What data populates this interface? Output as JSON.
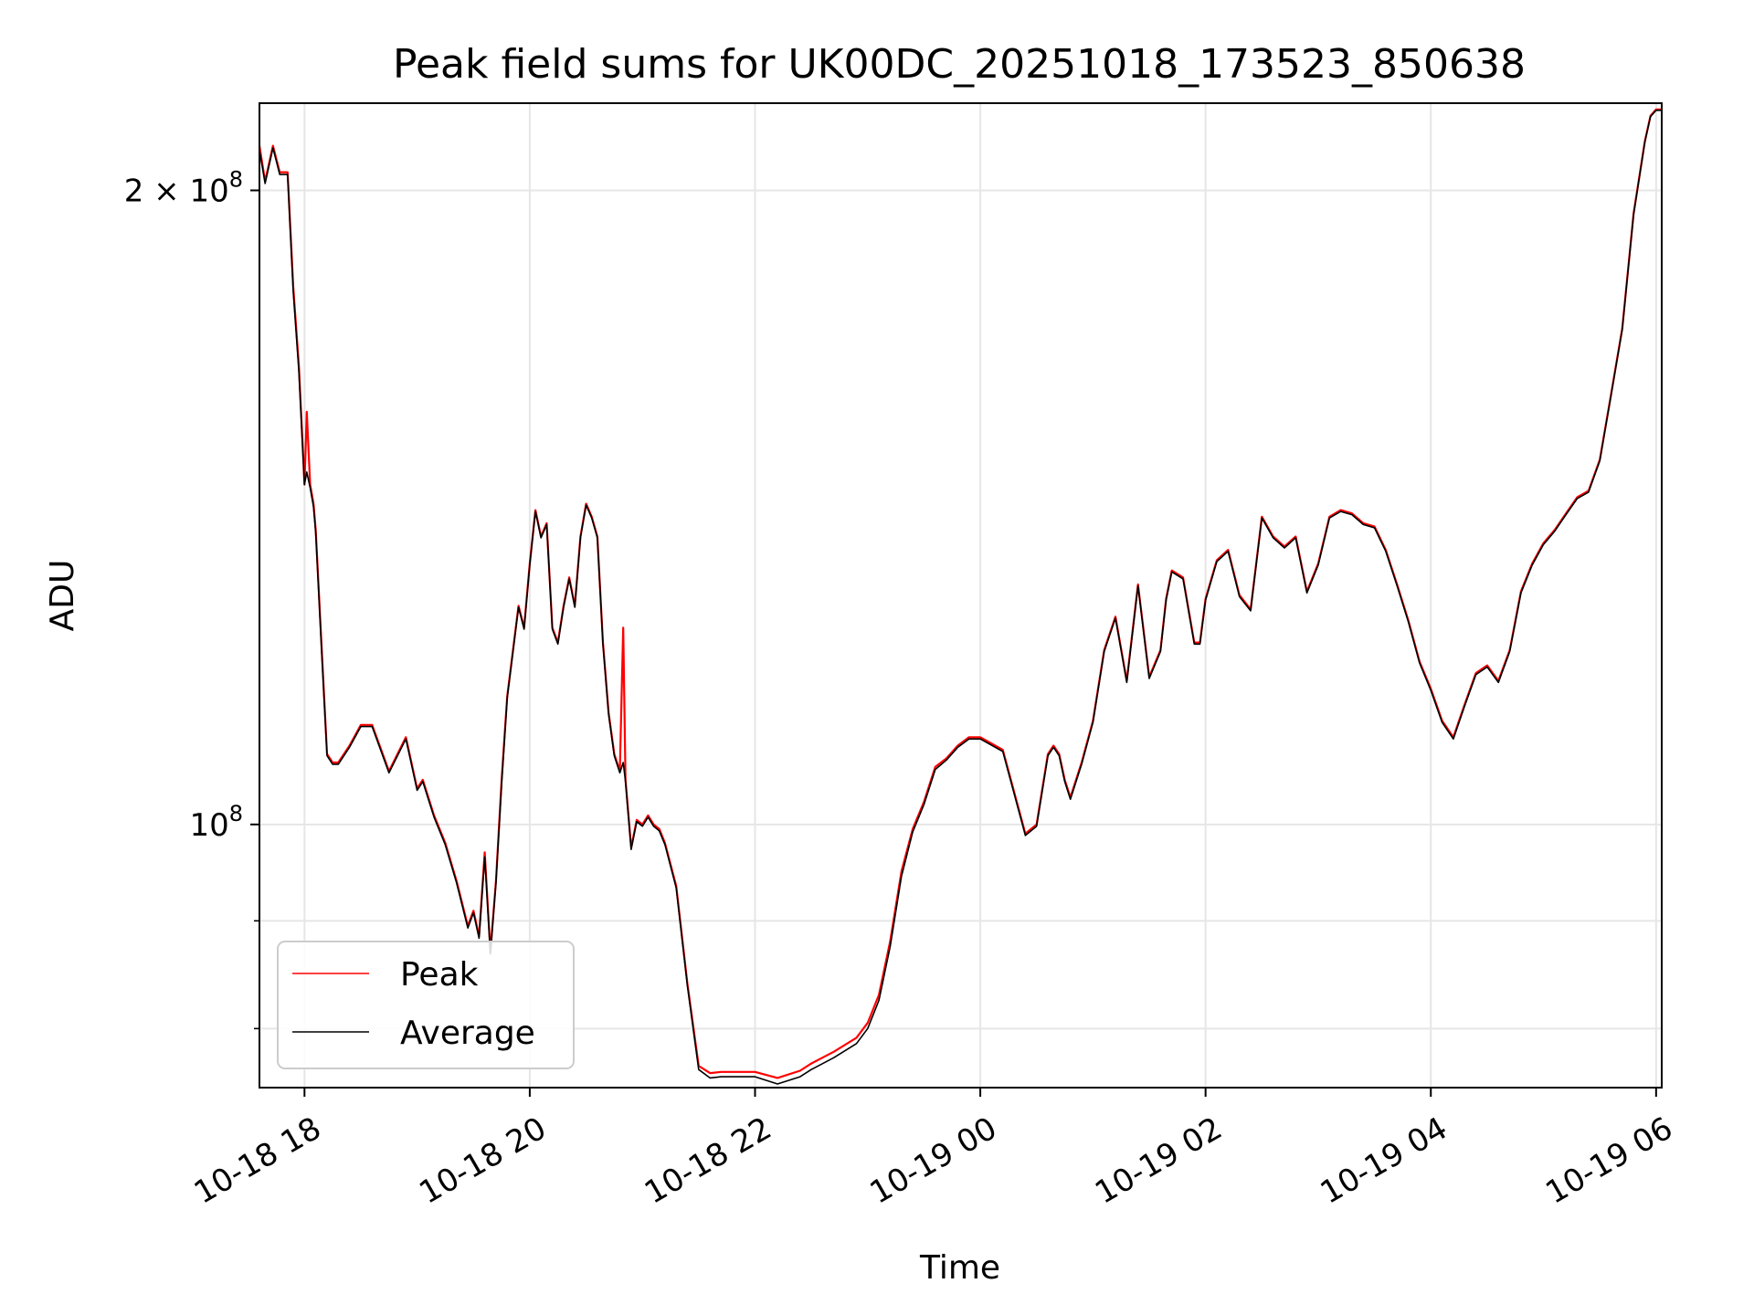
{
  "chart_data": {
    "type": "line",
    "title": "Peak field sums for UK00DC_20251018_173523_850638",
    "xlabel": "Time",
    "ylabel": "ADU",
    "yscale": "log",
    "xlim": [
      17.6,
      30.05
    ],
    "ylim": [
      75000000,
      220000000
    ],
    "grid": true,
    "legend_position": "lower-left",
    "x_unit": "hours since 10-18 00:00",
    "x_ticks": [
      {
        "value": 18,
        "label": "10-18 18"
      },
      {
        "value": 20,
        "label": "10-18 20"
      },
      {
        "value": 22,
        "label": "10-18 22"
      },
      {
        "value": 24,
        "label": "10-19 00"
      },
      {
        "value": 26,
        "label": "10-19 02"
      },
      {
        "value": 28,
        "label": "10-19 04"
      },
      {
        "value": 30,
        "label": "10-19 06"
      }
    ],
    "y_ticks_major": [
      {
        "value": 100000000,
        "base": "10",
        "exp": "8",
        "coef": ""
      },
      {
        "value": 200000000,
        "base": "10",
        "exp": "8",
        "coef": "2 × "
      }
    ],
    "y_ticks_minor": [
      80000000,
      90000000
    ],
    "series": [
      {
        "name": "Peak",
        "color": "#ff0000",
        "x": [
          17.6,
          17.65,
          17.72,
          17.78,
          17.85,
          17.9,
          17.95,
          18.0,
          18.02,
          18.05,
          18.08,
          18.1,
          18.15,
          18.2,
          18.25,
          18.3,
          18.4,
          18.5,
          18.6,
          18.75,
          18.9,
          19.0,
          19.05,
          19.1,
          19.15,
          19.25,
          19.35,
          19.45,
          19.5,
          19.55,
          19.6,
          19.65,
          19.7,
          19.75,
          19.8,
          19.9,
          19.95,
          20.0,
          20.05,
          20.1,
          20.15,
          20.2,
          20.25,
          20.3,
          20.35,
          20.4,
          20.45,
          20.5,
          20.55,
          20.6,
          20.65,
          20.7,
          20.75,
          20.8,
          20.83,
          20.85,
          20.9,
          20.95,
          21.0,
          21.05,
          21.1,
          21.15,
          21.2,
          21.3,
          21.4,
          21.5,
          21.6,
          21.7,
          21.8,
          22.0,
          22.2,
          22.4,
          22.5,
          22.7,
          22.9,
          23.0,
          23.1,
          23.2,
          23.3,
          23.4,
          23.5,
          23.6,
          23.7,
          23.8,
          23.9,
          24.0,
          24.2,
          24.4,
          24.5,
          24.6,
          24.65,
          24.7,
          24.75,
          24.8,
          24.9,
          25.0,
          25.1,
          25.2,
          25.3,
          25.4,
          25.5,
          25.6,
          25.65,
          25.7,
          25.8,
          25.9,
          25.95,
          26.0,
          26.1,
          26.2,
          26.3,
          26.4,
          26.5,
          26.6,
          26.7,
          26.8,
          26.9,
          27.0,
          27.1,
          27.2,
          27.3,
          27.4,
          27.5,
          27.6,
          27.7,
          27.8,
          27.9,
          28.0,
          28.1,
          28.2,
          28.3,
          28.4,
          28.5,
          28.6,
          28.7,
          28.8,
          28.9,
          29.0,
          29.1,
          29.2,
          29.3,
          29.4,
          29.5,
          29.6,
          29.7,
          29.8,
          29.9,
          29.95,
          30.0,
          30.05
        ],
        "y": [
          210000000,
          202000000,
          210000000,
          204000000,
          204000000,
          180000000,
          165000000,
          145000000,
          157000000,
          145000000,
          142000000,
          138000000,
          122000000,
          108000000,
          107000000,
          107000000,
          109000000,
          111500000,
          111500000,
          106000000,
          110000000,
          104000000,
          105000000,
          103000000,
          101000000,
          98000000,
          94000000,
          89500000,
          91000000,
          88500000,
          97000000,
          87000000,
          94000000,
          105000000,
          115000000,
          127000000,
          124000000,
          133000000,
          141000000,
          137000000,
          139000000,
          124000000,
          122000000,
          127000000,
          131000000,
          127000000,
          137000000,
          142000000,
          140000000,
          137000000,
          122000000,
          113000000,
          108000000,
          106000000,
          124000000,
          105000000,
          97500000,
          100500000,
          100000000,
          101000000,
          100000000,
          99500000,
          98000000,
          93500000,
          84000000,
          76800000,
          76200000,
          76300000,
          76300000,
          76300000,
          75800000,
          76400000,
          77000000,
          78000000,
          79200000,
          80500000,
          83000000,
          88000000,
          95000000,
          99500000,
          102500000,
          106500000,
          107500000,
          109000000,
          110000000,
          110000000,
          108500000,
          99000000,
          100000000,
          108000000,
          109000000,
          108000000,
          105000000,
          103000000,
          107000000,
          112000000,
          121000000,
          125500000,
          117000000,
          130000000,
          117500000,
          121000000,
          128000000,
          132000000,
          131000000,
          122000000,
          122000000,
          128000000,
          133500000,
          135000000,
          128500000,
          126500000,
          140000000,
          137000000,
          135500000,
          137000000,
          129000000,
          133000000,
          140000000,
          141000000,
          140500000,
          139000000,
          138500000,
          135000000,
          130000000,
          125000000,
          119500000,
          116000000,
          112000000,
          110000000,
          114000000,
          118000000,
          119000000,
          117000000,
          121000000,
          129000000,
          133000000,
          136000000,
          138000000,
          140500000,
          143000000,
          144000000,
          149000000,
          160000000,
          172000000,
          195000000,
          211000000,
          217000000,
          218500000,
          218500000
        ]
      },
      {
        "name": "Average",
        "color": "#000000",
        "x": [
          17.6,
          17.65,
          17.72,
          17.78,
          17.85,
          17.9,
          17.95,
          18.0,
          18.02,
          18.05,
          18.08,
          18.1,
          18.15,
          18.2,
          18.25,
          18.3,
          18.4,
          18.5,
          18.6,
          18.75,
          18.9,
          19.0,
          19.05,
          19.1,
          19.15,
          19.25,
          19.35,
          19.45,
          19.5,
          19.55,
          19.6,
          19.65,
          19.7,
          19.75,
          19.8,
          19.9,
          19.95,
          20.0,
          20.05,
          20.1,
          20.15,
          20.2,
          20.25,
          20.3,
          20.35,
          20.4,
          20.45,
          20.5,
          20.55,
          20.6,
          20.65,
          20.7,
          20.75,
          20.8,
          20.83,
          20.85,
          20.9,
          20.95,
          21.0,
          21.05,
          21.1,
          21.15,
          21.2,
          21.3,
          21.4,
          21.5,
          21.6,
          21.7,
          21.8,
          22.0,
          22.2,
          22.4,
          22.5,
          22.7,
          22.9,
          23.0,
          23.1,
          23.2,
          23.3,
          23.4,
          23.5,
          23.6,
          23.7,
          23.8,
          23.9,
          24.0,
          24.2,
          24.4,
          24.5,
          24.6,
          24.65,
          24.7,
          24.75,
          24.8,
          24.9,
          25.0,
          25.1,
          25.2,
          25.3,
          25.4,
          25.5,
          25.6,
          25.65,
          25.7,
          25.8,
          25.9,
          25.95,
          26.0,
          26.1,
          26.2,
          26.3,
          26.4,
          26.5,
          26.6,
          26.7,
          26.8,
          26.9,
          27.0,
          27.1,
          27.2,
          27.3,
          27.4,
          27.5,
          27.6,
          27.7,
          27.8,
          27.9,
          28.0,
          28.1,
          28.2,
          28.3,
          28.4,
          28.5,
          28.6,
          28.7,
          28.8,
          28.9,
          29.0,
          29.1,
          29.2,
          29.3,
          29.4,
          29.5,
          29.6,
          29.7,
          29.8,
          29.9,
          29.95,
          30.0,
          30.05
        ],
        "y": [
          209000000,
          201500000,
          209500000,
          203500000,
          203500000,
          179000000,
          164000000,
          145000000,
          147000000,
          144500000,
          141500000,
          137500000,
          121500000,
          107800000,
          106800000,
          106800000,
          108800000,
          111300000,
          111300000,
          105800000,
          109800000,
          103800000,
          104800000,
          102800000,
          100800000,
          97800000,
          93800000,
          89300000,
          90800000,
          88300000,
          96500000,
          86800000,
          93800000,
          104500000,
          114800000,
          126800000,
          123800000,
          132800000,
          140800000,
          136800000,
          138800000,
          123800000,
          121800000,
          126800000,
          130800000,
          126800000,
          136800000,
          141800000,
          139800000,
          136800000,
          121800000,
          112800000,
          107800000,
          105800000,
          107000000,
          104800000,
          97300000,
          100300000,
          99800000,
          100800000,
          99800000,
          99300000,
          97800000,
          93300000,
          83800000,
          76500000,
          75800000,
          75900000,
          75900000,
          75900000,
          75300000,
          75900000,
          76500000,
          77500000,
          78700000,
          80000000,
          82500000,
          87500000,
          94500000,
          99200000,
          102200000,
          106200000,
          107300000,
          108800000,
          109800000,
          109800000,
          108300000,
          98800000,
          99800000,
          107800000,
          108800000,
          107800000,
          104800000,
          102800000,
          106800000,
          111800000,
          120800000,
          125300000,
          116800000,
          129800000,
          117300000,
          120800000,
          127800000,
          131800000,
          130800000,
          121800000,
          121800000,
          127800000,
          133300000,
          134800000,
          128300000,
          126300000,
          139800000,
          136800000,
          135300000,
          136800000,
          128800000,
          132800000,
          139800000,
          140800000,
          140300000,
          138800000,
          138300000,
          134800000,
          129800000,
          124800000,
          119300000,
          115800000,
          111800000,
          109800000,
          113800000,
          117800000,
          118800000,
          116800000,
          120800000,
          128800000,
          132800000,
          135800000,
          137800000,
          140300000,
          142800000,
          143800000,
          148800000,
          159800000,
          171800000,
          194800000,
          210800000,
          216800000,
          218300000,
          218300000
        ]
      }
    ]
  }
}
